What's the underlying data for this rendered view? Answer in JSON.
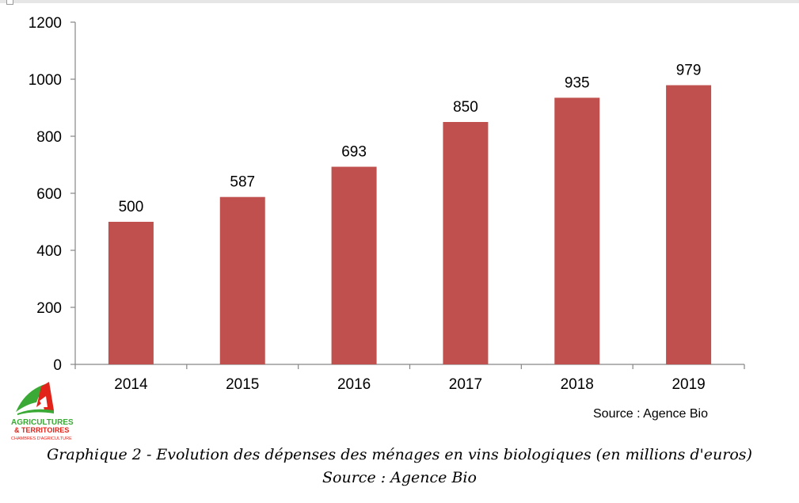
{
  "chart_data": {
    "type": "bar",
    "categories": [
      "2014",
      "2015",
      "2016",
      "2017",
      "2018",
      "2019"
    ],
    "values": [
      500,
      587,
      693,
      850,
      935,
      979
    ],
    "data_labels": [
      "500",
      "587",
      "693",
      "850",
      "935",
      "979"
    ],
    "ylim": [
      0,
      1200
    ],
    "yticks": [
      0,
      200,
      400,
      600,
      800,
      1000,
      1200
    ],
    "grid": false,
    "bar_color": "#c0504d",
    "source_note": "Source : Agence Bio"
  },
  "caption": {
    "title": "Graphique 2 - Evolution des dépenses des ménages en vins biologiques (en millions d'euros)",
    "source": "Source : Agence Bio"
  },
  "logo": {
    "line1": "AGRICULTURES",
    "line2": "& TERRITOIRES",
    "line3": "CHAMBRES D'AGRICULTURE",
    "colors": {
      "green": "#3aa935",
      "red": "#e2231a"
    }
  }
}
